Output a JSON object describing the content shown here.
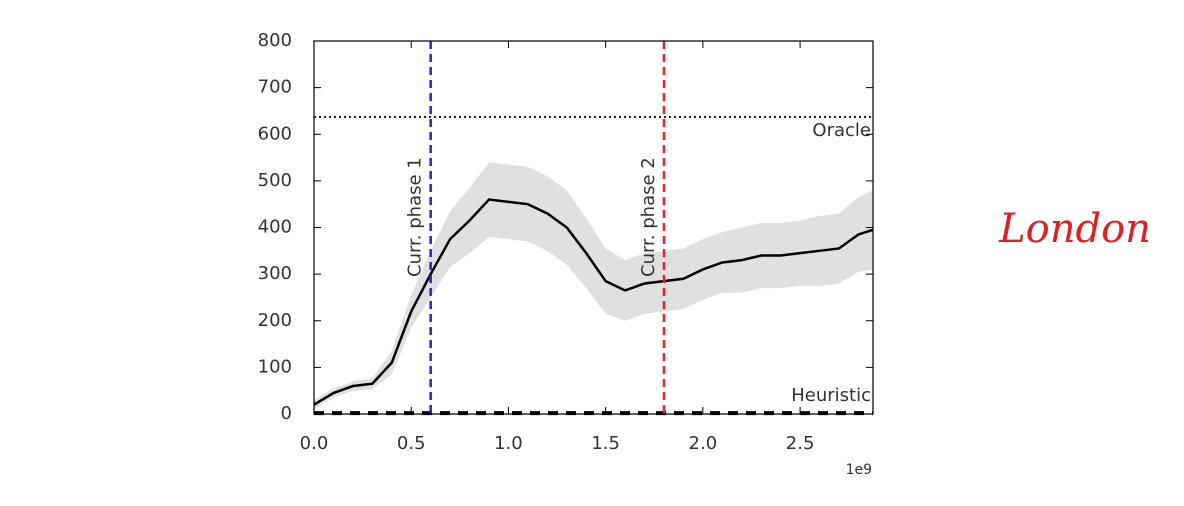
{
  "chart_data": {
    "type": "line",
    "x": [
      0,
      0.1,
      0.2,
      0.3,
      0.4,
      0.5,
      0.6,
      0.7,
      0.8,
      0.9,
      1.0,
      1.1,
      1.2,
      1.3,
      1.4,
      1.5,
      1.6,
      1.7,
      1.8,
      1.9,
      2.0,
      2.1,
      2.2,
      2.3,
      2.4,
      2.5,
      2.6,
      2.7,
      2.8,
      2.875
    ],
    "series": [
      {
        "color": "#000000",
        "values": [
          20,
          45,
          60,
          65,
          110,
          220,
          300,
          375,
          415,
          460,
          455,
          450,
          430,
          400,
          345,
          285,
          265,
          280,
          285,
          290,
          310,
          325,
          330,
          340,
          340,
          345,
          350,
          355,
          385,
          395
        ]
      }
    ],
    "band_color": "#e0e0e0",
    "band_lower": [
      10,
      35,
      50,
      53,
      85,
      185,
      250,
      315,
      345,
      380,
      375,
      370,
      350,
      320,
      270,
      215,
      200,
      215,
      220,
      225,
      245,
      260,
      260,
      270,
      270,
      275,
      275,
      280,
      305,
      310
    ],
    "band_upper": [
      30,
      55,
      70,
      77,
      135,
      255,
      350,
      435,
      485,
      540,
      535,
      530,
      510,
      480,
      420,
      355,
      330,
      345,
      350,
      355,
      375,
      390,
      400,
      410,
      410,
      415,
      425,
      430,
      465,
      480
    ],
    "xlim": [
      0,
      2.875
    ],
    "xticks": [
      {
        "value": 0,
        "label": "0.0"
      },
      {
        "value": 0.5,
        "label": "0.5"
      },
      {
        "value": 1,
        "label": "1.0"
      },
      {
        "value": 1.5,
        "label": "1.5"
      },
      {
        "value": 2,
        "label": "2.0"
      },
      {
        "value": 2.5,
        "label": "2.5"
      }
    ],
    "x_offset_label": "1e9",
    "ylim": [
      0,
      800
    ],
    "yticks": [
      0,
      100,
      200,
      300,
      400,
      500,
      600,
      700,
      800
    ],
    "vlines": [
      {
        "x": 0.6,
        "label": "Curr. phase 1",
        "color": "#2222dd"
      },
      {
        "x": 1.8,
        "label": "Curr. phase 2",
        "color": "#ee2222"
      }
    ],
    "hlines": [
      {
        "y": 637,
        "label": "Oracle",
        "style": "dotted"
      },
      {
        "y": 2,
        "label": "Heuristic",
        "style": "dashed"
      }
    ]
  },
  "annotation": "London"
}
